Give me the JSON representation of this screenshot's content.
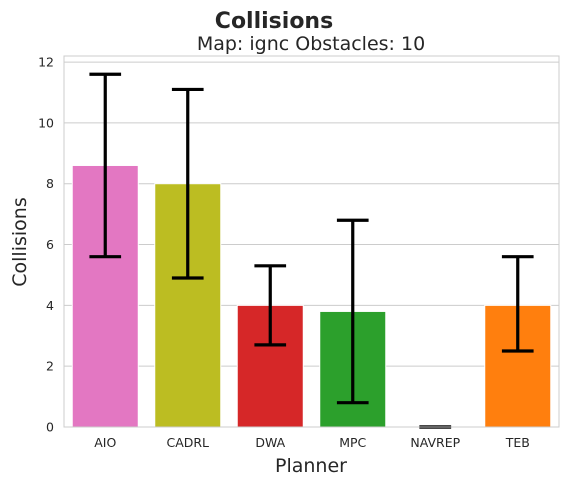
{
  "chart_data": {
    "type": "bar",
    "title": "Collisions",
    "subtitle": "Map: ignc Obstacles: 10",
    "xlabel": "Planner",
    "ylabel": "Collisions",
    "categories": [
      "AIO",
      "CADRL",
      "DWA",
      "MPC",
      "NAVREP",
      "TEB"
    ],
    "values": [
      8.6,
      8.0,
      4.0,
      3.8,
      0.0,
      4.0
    ],
    "error_low": [
      5.6,
      4.9,
      2.7,
      0.8,
      0.0,
      2.5
    ],
    "error_high": [
      11.6,
      11.1,
      5.3,
      6.8,
      0.0,
      5.6
    ],
    "colors": [
      "#e377c2",
      "#bcbd22",
      "#d62728",
      "#2ca02c",
      "#9467bd",
      "#ff7f0e"
    ],
    "ylim": [
      0,
      12.2
    ],
    "yticks": [
      0,
      2,
      4,
      6,
      8,
      10,
      12
    ],
    "grid": true,
    "legend": "none"
  }
}
